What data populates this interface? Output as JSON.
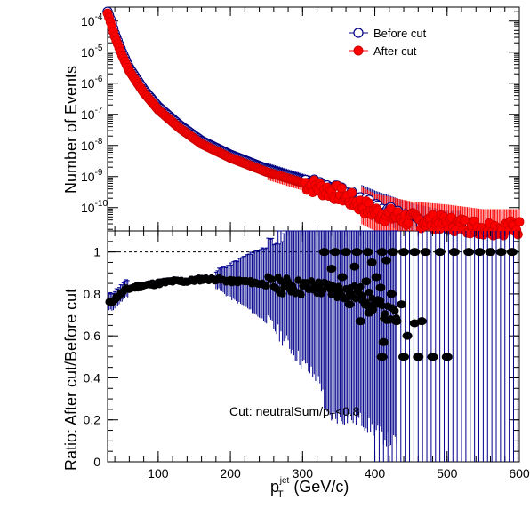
{
  "chart_data": [
    {
      "type": "scatter",
      "panel": "top",
      "xlabel": "",
      "ylabel": "Number of Events",
      "xlim": [
        30,
        600
      ],
      "ylim_log10": [
        -10.75,
        -3.55
      ],
      "log_y": true,
      "y_tick_labels": [
        "10",
        "10",
        "10",
        "10",
        "10",
        "10",
        "10"
      ],
      "y_tick_exponents": [
        "-4",
        "-5",
        "-6",
        "-7",
        "-8",
        "-9",
        "-10"
      ],
      "legend_position": "top-right",
      "series": [
        {
          "name": "Before cut",
          "marker": "open-circle",
          "color": "#000080",
          "x": [
            30,
            35,
            40,
            50,
            60,
            80,
            100,
            130,
            160,
            200,
            250,
            300,
            350,
            400,
            450,
            500
          ],
          "y_log10": [
            -3.7,
            -4.0,
            -4.4,
            -5.0,
            -5.5,
            -6.2,
            -6.75,
            -7.35,
            -7.85,
            -8.3,
            -8.75,
            -9.1,
            -9.45,
            -9.95,
            -10.35,
            -10.6
          ]
        },
        {
          "name": "After cut",
          "marker": "filled-circle",
          "color": "#ff0000",
          "x": [
            30,
            35,
            40,
            50,
            60,
            80,
            100,
            130,
            160,
            200,
            250,
            300,
            350,
            400,
            450,
            500,
            550,
            600
          ],
          "y_log10": [
            -3.75,
            -4.1,
            -4.5,
            -5.1,
            -5.6,
            -6.3,
            -6.85,
            -7.45,
            -7.95,
            -8.4,
            -8.85,
            -9.2,
            -9.55,
            -10.15,
            -10.4,
            -10.5,
            -10.65,
            -10.65
          ]
        }
      ]
    },
    {
      "type": "scatter",
      "panel": "bottom",
      "xlabel_main": "p",
      "xlabel_sub": "T",
      "xlabel_sup": "jet",
      "xlabel_units": " (GeV/c)",
      "ylabel": "Ratio: After cut/Before cut",
      "xlim": [
        30,
        600
      ],
      "ylim": [
        0,
        1.1
      ],
      "x_ticks": [
        100,
        200,
        300,
        400,
        500,
        600
      ],
      "y_ticks": [
        0,
        0.2,
        0.4,
        0.6,
        0.8,
        1
      ],
      "y_tick_labels": [
        "0",
        "0.2",
        "0.4",
        "0.6",
        "0.8",
        "1"
      ],
      "x_tick_labels": [
        "100",
        "200",
        "300",
        "400",
        "500",
        "600"
      ],
      "reference_line": 1,
      "annotation_main": "Cut: neutralSum/p",
      "annotation_sub": "T",
      "annotation_tail": "<0.8",
      "points_color": "#000000",
      "error_color": "#00008b",
      "ratio": {
        "x": [
          35,
          45,
          55,
          65,
          80,
          100,
          120,
          140,
          160,
          180,
          200,
          220,
          240,
          260,
          280,
          300,
          320,
          340,
          360,
          380,
          400,
          420
        ],
        "y": [
          0.76,
          0.79,
          0.82,
          0.83,
          0.84,
          0.85,
          0.86,
          0.86,
          0.87,
          0.87,
          0.86,
          0.86,
          0.85,
          0.84,
          0.84,
          0.83,
          0.83,
          0.82,
          0.81,
          0.8,
          0.75,
          0.7
        ]
      },
      "ones_at": [
        330,
        345,
        360,
        375,
        390,
        410,
        425,
        440,
        455,
        470,
        490,
        510,
        530,
        545,
        560,
        575,
        590
      ],
      "halves_at": [
        410,
        440,
        460,
        480,
        500
      ],
      "scatter_extras": [
        {
          "x": 340,
          "y": 0.92
        },
        {
          "x": 355,
          "y": 0.88
        },
        {
          "x": 365,
          "y": 0.75
        },
        {
          "x": 372,
          "y": 0.93
        },
        {
          "x": 382,
          "y": 0.79
        },
        {
          "x": 388,
          "y": 0.86
        },
        {
          "x": 396,
          "y": 0.95
        },
        {
          "x": 402,
          "y": 0.88
        },
        {
          "x": 408,
          "y": 0.83
        },
        {
          "x": 416,
          "y": 0.96
        },
        {
          "x": 423,
          "y": 0.8
        },
        {
          "x": 430,
          "y": 0.67
        },
        {
          "x": 437,
          "y": 0.75
        },
        {
          "x": 445,
          "y": 0.6
        },
        {
          "x": 455,
          "y": 0.66
        },
        {
          "x": 465,
          "y": 0.67
        },
        {
          "x": 380,
          "y": 0.67
        },
        {
          "x": 392,
          "y": 0.71
        },
        {
          "x": 412,
          "y": 0.57
        }
      ]
    }
  ]
}
